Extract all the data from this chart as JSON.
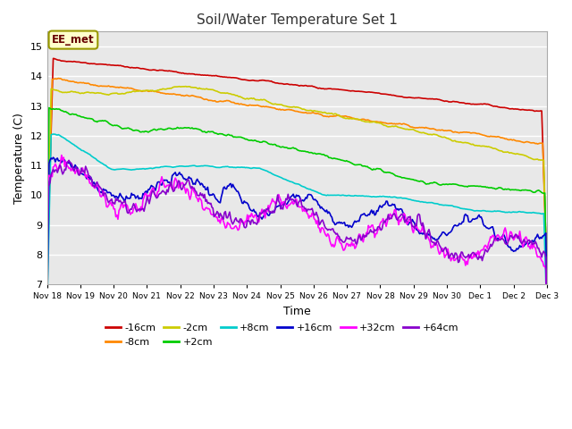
{
  "title": "Soil/Water Temperature Set 1",
  "xlabel": "Time",
  "ylabel": "Temperature (C)",
  "ylim": [
    7.0,
    15.5
  ],
  "yticks": [
    7.0,
    8.0,
    9.0,
    10.0,
    11.0,
    12.0,
    13.0,
    14.0,
    15.0
  ],
  "fig_bg_color": "#ffffff",
  "plot_bg_color": "#e8e8e8",
  "annotation_text": "EE_met",
  "annotation_bg": "#ffffcc",
  "annotation_border": "#999900",
  "series": {
    "-16cm": {
      "color": "#cc0000",
      "linewidth": 1.2
    },
    "-8cm": {
      "color": "#ff8800",
      "linewidth": 1.2
    },
    "-2cm": {
      "color": "#cccc00",
      "linewidth": 1.2
    },
    "+2cm": {
      "color": "#00cc00",
      "linewidth": 1.2
    },
    "+8cm": {
      "color": "#00cccc",
      "linewidth": 1.2
    },
    "+16cm": {
      "color": "#0000cc",
      "linewidth": 1.2
    },
    "+32cm": {
      "color": "#ff00ff",
      "linewidth": 1.2
    },
    "+64cm": {
      "color": "#8800cc",
      "linewidth": 1.2
    }
  },
  "xtick_labels": [
    "Nov 18",
    "Nov 19",
    "Nov 20",
    "Nov 21",
    "Nov 22",
    "Nov 23",
    "Nov 24",
    "Nov 25",
    "Nov 26",
    "Nov 27",
    "Nov 28",
    "Nov 29",
    "Nov 30",
    "Dec 1",
    "Dec 2",
    "Dec 3"
  ],
  "num_points": 480,
  "legend_row1": [
    "-16cm",
    "-8cm",
    "-2cm",
    "+2cm",
    "+8cm",
    "+16cm"
  ],
  "legend_row2": [
    "+32cm",
    "+64cm"
  ]
}
